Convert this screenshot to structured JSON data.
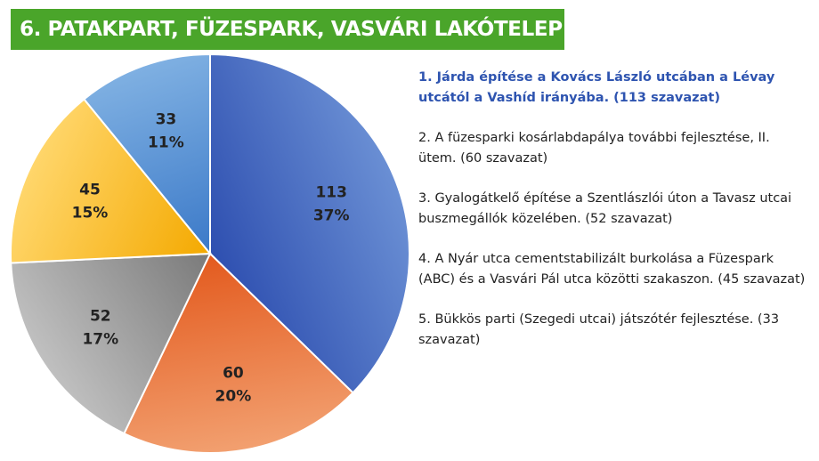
{
  "title": "6. PATAKPART, FÜZESPARK, VASVÁRI LAKÓTELEP",
  "chart_data": {
    "type": "pie",
    "slices": [
      {
        "value": 113,
        "percent": "37%",
        "color_start": "#2e4fb0",
        "color_end": "#6a8fd4"
      },
      {
        "value": 60,
        "percent": "20%",
        "color_start": "#e35a1e",
        "color_end": "#f2a070"
      },
      {
        "value": 52,
        "percent": "17%",
        "color_start": "#7a7a7a",
        "color_end": "#c0c0c0"
      },
      {
        "value": 45,
        "percent": "15%",
        "color_start": "#f4a900",
        "color_end": "#ffd66b"
      },
      {
        "value": 33,
        "percent": "11%",
        "color_start": "#3b79c8",
        "color_end": "#7fb0e2"
      }
    ],
    "start_angle_deg": 0,
    "direction": "clockwise"
  },
  "legend": [
    {
      "text": "1. Járda építése a Kovács László utcában a Lévay utcától a Vashíd irányába. (113 szavazat)",
      "highlight": true
    },
    {
      "text": "2. A füzesparki kosárlabdapálya további fejlesztése, II. ütem. (60 szavazat)",
      "highlight": false
    },
    {
      "text": "3. Gyalogátkelő építése a Szentlászlói úton a Tavasz utcai buszmegállók közelében. (52 szavazat)",
      "highlight": false
    },
    {
      "text": "4. A Nyár utca cementstabilizált burkolása a Füzespark (ABC) és a Vasvári Pál utca közötti szakaszon. (45 szavazat)",
      "highlight": false
    },
    {
      "text": "5. Bükkös parti (Szegedi utcai) játszótér fejlesztése. (33 szavazat)",
      "highlight": false
    }
  ]
}
